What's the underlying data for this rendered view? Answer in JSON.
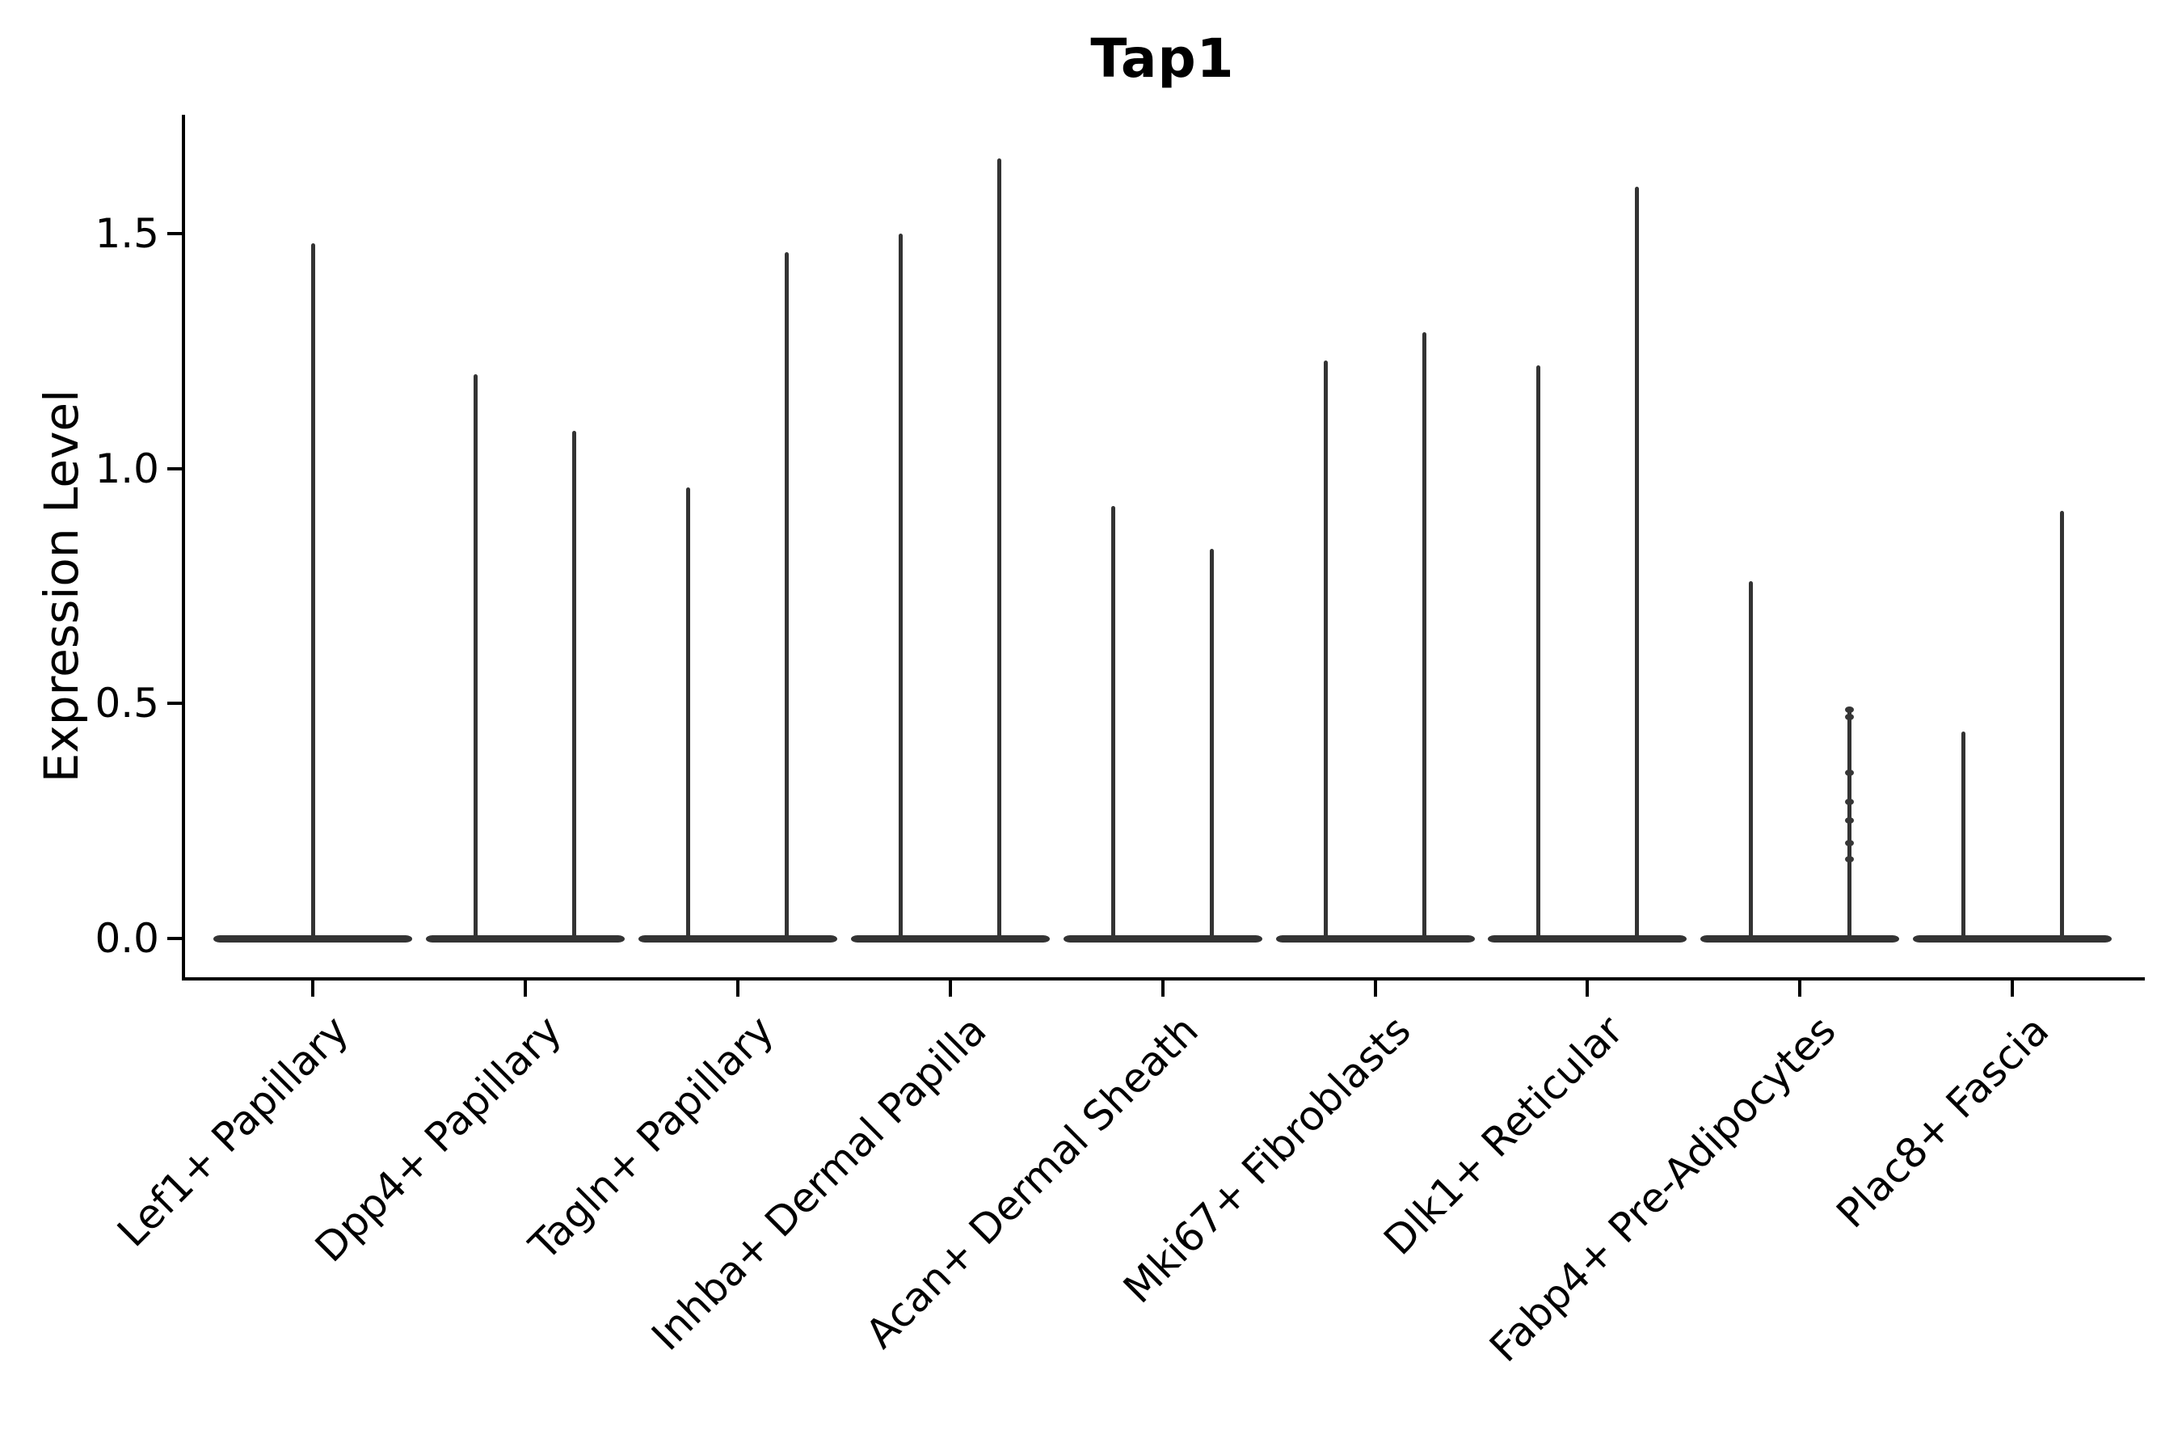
{
  "chart_data": {
    "type": "violin",
    "title": "Tap1",
    "ylabel": "Expression Level",
    "xlabel": "",
    "ylim": [
      -0.08,
      1.75
    ],
    "grid": false,
    "legend": "none",
    "ytick_values": [
      0.0,
      0.5,
      1.0,
      1.5
    ],
    "ytick_labels": [
      "0.0",
      "0.5",
      "1.0",
      "1.5"
    ],
    "violin_style": "collapsed-at-zero-base-with-thin-spike-to-max",
    "categories": [
      {
        "label": "Lef1+ Papillary",
        "violins": [
          {
            "max": 1.48,
            "dots": []
          }
        ]
      },
      {
        "label": "Dpp4+ Papillary",
        "violins": [
          {
            "max": 1.2,
            "dots": []
          },
          {
            "max": 1.08,
            "dots": []
          }
        ]
      },
      {
        "label": "Tagln+ Papillary",
        "violins": [
          {
            "max": 0.96,
            "dots": []
          },
          {
            "max": 1.46,
            "dots": []
          }
        ]
      },
      {
        "label": "Inhba+ Dermal Papilla",
        "violins": [
          {
            "max": 1.5,
            "dots": []
          },
          {
            "max": 1.66,
            "dots": []
          }
        ]
      },
      {
        "label": "Acan+ Dermal Sheath",
        "violins": [
          {
            "max": 0.92,
            "dots": []
          },
          {
            "max": 0.83,
            "dots": []
          }
        ]
      },
      {
        "label": "Mki67+ Fibroblasts",
        "violins": [
          {
            "max": 1.23,
            "dots": []
          },
          {
            "max": 1.29,
            "dots": []
          }
        ]
      },
      {
        "label": "Dlk1+ Reticular",
        "violins": [
          {
            "max": 1.22,
            "dots": []
          },
          {
            "max": 1.6,
            "dots": []
          }
        ]
      },
      {
        "label": "Fabp4+ Pre-Adipocytes",
        "violins": [
          {
            "max": 0.76,
            "dots": []
          },
          {
            "max": 0.49,
            "dots": [
              0.487,
              0.471,
              0.353,
              0.291,
              0.251,
              0.203,
              0.169
            ]
          }
        ]
      },
      {
        "label": "Plac8+ Fascia",
        "violins": [
          {
            "max": 0.44,
            "dots": []
          },
          {
            "max": 0.91,
            "dots": []
          }
        ]
      }
    ],
    "colors": {
      "violin": "#333333",
      "axis": "#000000",
      "text": "#000000",
      "background": "#ffffff"
    }
  }
}
